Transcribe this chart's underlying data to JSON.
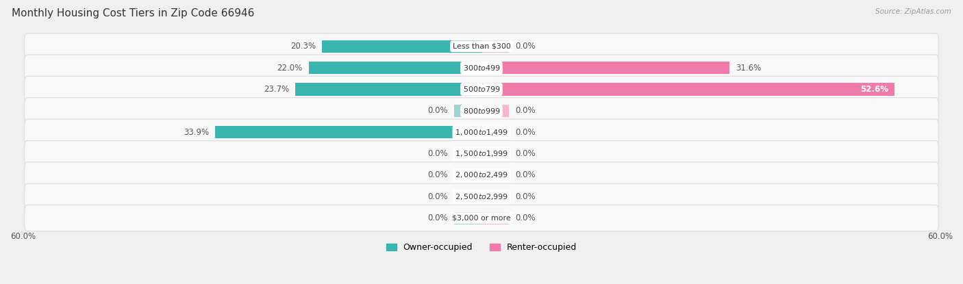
{
  "title": "Monthly Housing Cost Tiers in Zip Code 66946",
  "source": "Source: ZipAtlas.com",
  "categories": [
    "Less than $300",
    "$300 to $499",
    "$500 to $799",
    "$800 to $999",
    "$1,000 to $1,499",
    "$1,500 to $1,999",
    "$2,000 to $2,499",
    "$2,500 to $2,999",
    "$3,000 or more"
  ],
  "owner_values": [
    20.3,
    22.0,
    23.7,
    0.0,
    33.9,
    0.0,
    0.0,
    0.0,
    0.0
  ],
  "renter_values": [
    0.0,
    31.6,
    52.6,
    0.0,
    0.0,
    0.0,
    0.0,
    0.0,
    0.0
  ],
  "owner_color": "#3ab5ae",
  "owner_color_zero": "#9dd4d1",
  "renter_color": "#f07aaa",
  "renter_color_zero": "#f5b8d0",
  "background_color": "#efefef",
  "row_bg_color": "#f8f8f8",
  "row_border_color": "#dddddd",
  "x_max": 60.0,
  "zero_stub": 3.5,
  "title_fontsize": 11,
  "label_fontsize": 8.5,
  "legend_fontsize": 9,
  "source_fontsize": 7.5
}
